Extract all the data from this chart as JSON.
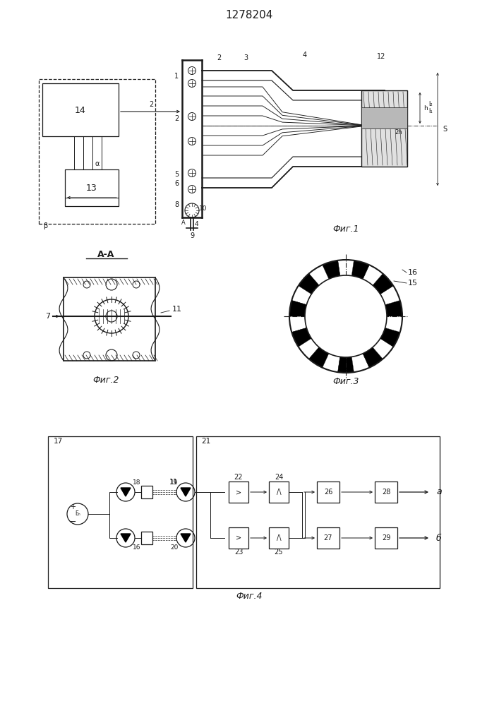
{
  "title": "1278204",
  "title_fontsize": 11,
  "bg_color": "#ffffff",
  "line_color": "#1a1a1a",
  "fig1_caption": "Фиг.1",
  "fig2_caption": "Фиг.2",
  "fig3_caption": "Фиг.3",
  "fig4_caption": "Фиг.4",
  "section_label": "А-А"
}
